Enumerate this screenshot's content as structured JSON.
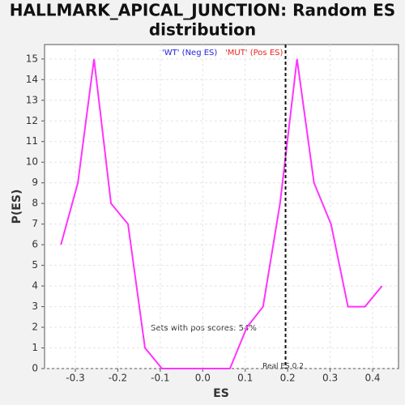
{
  "chart_data": {
    "type": "line",
    "title": "HALLMARK_APICAL_JUNCTION: Random ES distribution",
    "x_label": "ES",
    "y_label": "P(ES)",
    "legend": [
      {
        "name": "'WT' (Neg ES)",
        "color": "#2222dd"
      },
      {
        "name": "'MUT' (Pos ES)",
        "color": "#ee2222"
      }
    ],
    "annotation": "Sets with pos scores: 54%",
    "real_es": {
      "value": 0.195,
      "label": "Real ES 0.2"
    },
    "x": [
      -0.334,
      -0.294,
      -0.256,
      -0.216,
      -0.176,
      -0.136,
      -0.096,
      -0.056,
      -0.016,
      0.024,
      0.064,
      0.104,
      0.142,
      0.182,
      0.222,
      0.262,
      0.302,
      0.342,
      0.382,
      0.422
    ],
    "series": [
      {
        "color": "#ff33ff",
        "values": [
          6,
          9,
          15,
          8,
          7,
          1,
          0,
          0,
          0,
          0,
          0,
          2,
          3,
          8,
          15,
          9,
          7,
          3,
          3,
          4
        ]
      }
    ],
    "xlim": [
      -0.3725,
      0.461
    ],
    "ylim": [
      0,
      15.7
    ],
    "xticks": [
      -0.3,
      -0.2,
      -0.1,
      {
        "value": 0,
        "label": "0.0"
      },
      0.1,
      0.2,
      0.3,
      0.4
    ],
    "yticks": [
      0,
      1,
      2,
      3,
      4,
      5,
      6,
      7,
      8,
      9,
      10,
      11,
      12,
      13,
      14,
      15
    ],
    "grid": true
  }
}
